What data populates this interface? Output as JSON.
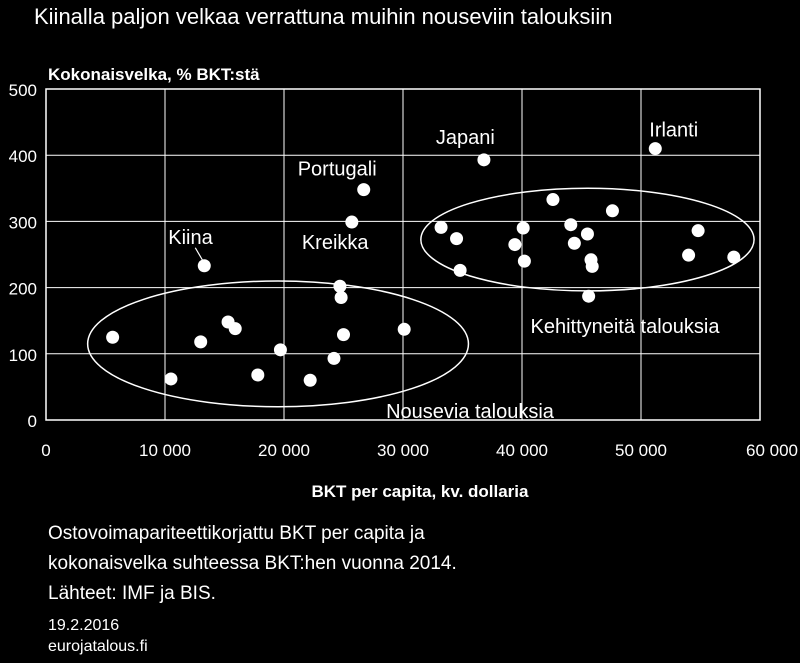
{
  "chart_data": {
    "type": "scatter",
    "title": "Kiinalla paljon velkaa verrattuna muihin nouseviin talouksiin",
    "ylabel": "Kokonaisvelka, % BKT:stä",
    "xlabel": "BKT per capita, kv. dollaria",
    "xlim": [
      0,
      60000
    ],
    "ylim": [
      0,
      500
    ],
    "x_ticks": [
      0,
      10000,
      20000,
      30000,
      40000,
      50000,
      60000
    ],
    "x_tick_labels": [
      "0",
      "10 000",
      "20 000",
      "30 000",
      "40 000",
      "50 000",
      "60 000"
    ],
    "y_ticks": [
      0,
      100,
      200,
      300,
      400,
      500
    ],
    "y_tick_labels": [
      "0",
      "100",
      "200",
      "300",
      "400",
      "500"
    ],
    "grid": true,
    "series": [
      {
        "name": "Nousevia talouksia",
        "points": [
          [
            5600,
            125
          ],
          [
            10500,
            62
          ],
          [
            13000,
            118
          ],
          [
            15300,
            148
          ],
          [
            15900,
            138
          ],
          [
            17800,
            68
          ],
          [
            19700,
            106
          ],
          [
            22200,
            60
          ],
          [
            24200,
            93
          ],
          [
            24700,
            202
          ],
          [
            24800,
            185
          ],
          [
            25000,
            129
          ],
          [
            13300,
            233
          ],
          [
            25700,
            299
          ],
          [
            26700,
            348
          ],
          [
            30100,
            137
          ]
        ]
      },
      {
        "name": "Kehittyneitä talouksia",
        "points": [
          [
            33200,
            291
          ],
          [
            34500,
            274
          ],
          [
            34800,
            226
          ],
          [
            36800,
            393
          ],
          [
            39400,
            265
          ],
          [
            40100,
            290
          ],
          [
            40200,
            240
          ],
          [
            42600,
            333
          ],
          [
            44100,
            295
          ],
          [
            44400,
            267
          ],
          [
            45500,
            281
          ],
          [
            45600,
            187
          ],
          [
            45800,
            242
          ],
          [
            45900,
            232
          ],
          [
            47600,
            316
          ],
          [
            51200,
            410
          ],
          [
            54000,
            249
          ],
          [
            54800,
            286
          ],
          [
            57800,
            246
          ]
        ]
      }
    ],
    "annotations": [
      {
        "text": "Kiina",
        "x": 13300,
        "y": 233
      },
      {
        "text": "Portugali",
        "x": 26700,
        "y": 348
      },
      {
        "text": "Kreikka",
        "x": 25700,
        "y": 299
      },
      {
        "text": "Japani",
        "x": 36800,
        "y": 393
      },
      {
        "text": "Irlanti",
        "x": 51200,
        "y": 410
      }
    ],
    "groups": [
      {
        "label": "Nousevia talouksia",
        "x_range": [
          3500,
          35500
        ],
        "y_range": [
          20,
          210
        ]
      },
      {
        "label": "Kehittyneitä talouksia",
        "x_range": [
          31500,
          59500
        ],
        "y_range": [
          195,
          350
        ]
      }
    ],
    "colors": {
      "background": "#000000",
      "foreground": "#ffffff"
    }
  },
  "notes": {
    "line1": "Ostovoimapariteettikorjattu BKT per capita ja",
    "line2": "kokonaisvelka suhteessa BKT:hen vuonna 2014.",
    "line3": "Lähteet: IMF ja BIS.",
    "date": "19.2.2016",
    "source": "eurojatalous.fi"
  }
}
